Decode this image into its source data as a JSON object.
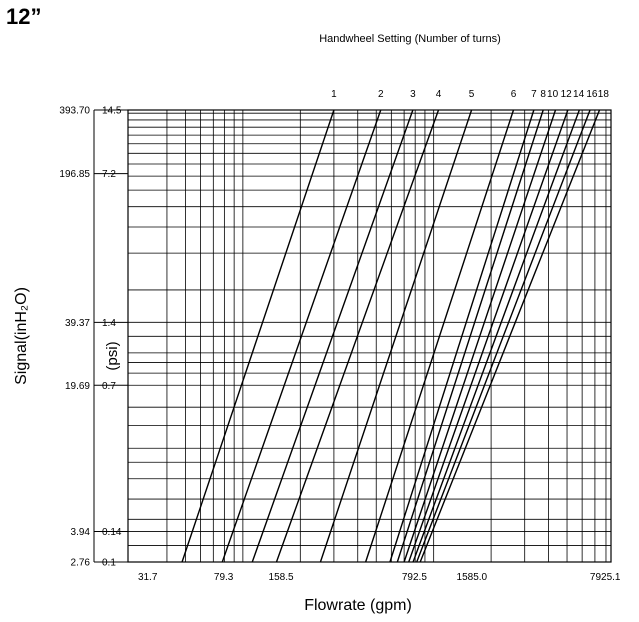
{
  "size_label": "12”",
  "chart_data": {
    "type": "line",
    "title": "Handwheel Setting (Number of turns)",
    "xlabel": "Flowrate (gpm)",
    "ylabel_outer": "Signal(inH₂O)",
    "ylabel_inner": "(psi)",
    "x_scale": "log",
    "y_scale": "log",
    "xlim": [
      25,
      8500
    ],
    "ylim": [
      0.1,
      14.5
    ],
    "grid": true,
    "x_ticks": [
      {
        "value": 31.7,
        "label": "31.7"
      },
      {
        "value": 79.3,
        "label": "79.3"
      },
      {
        "value": 158.5,
        "label": "158.5"
      },
      {
        "value": 792.5,
        "label": "792.5"
      },
      {
        "value": 1585.0,
        "label": "1585.0"
      },
      {
        "value": 7925.1,
        "label": "7925.1"
      }
    ],
    "y_ticks": [
      {
        "psi": 14.5,
        "psi_label": "14.5",
        "inh2o_label": "393.70"
      },
      {
        "psi": 7.2,
        "psi_label": "7.2",
        "inh2o_label": "196.85"
      },
      {
        "psi": 1.4,
        "psi_label": "1.4",
        "inh2o_label": "39.37"
      },
      {
        "psi": 0.7,
        "psi_label": "0.7",
        "inh2o_label": "19.69"
      },
      {
        "psi": 0.14,
        "psi_label": "0.14",
        "inh2o_label": "3.94"
      },
      {
        "psi": 0.1,
        "psi_label": "0.1",
        "inh2o_label": "2.76"
      }
    ],
    "x_grid": [
      40,
      50,
      60,
      70,
      80,
      90,
      100,
      200,
      300,
      400,
      500,
      600,
      700,
      800,
      900,
      1000,
      2000,
      3000,
      4000,
      5000,
      6000,
      7000,
      8000
    ],
    "y_grid": [
      0.12,
      0.14,
      0.16,
      0.2,
      0.25,
      0.3,
      0.35,
      0.45,
      0.55,
      0.7,
      0.8,
      0.9,
      1.0,
      1.2,
      1.4,
      2.0,
      3.0,
      4.0,
      5.0,
      6.0,
      7.0,
      8.0,
      9.0,
      10.0,
      11.0,
      12.0,
      13.0,
      14.0
    ],
    "series": [
      {
        "name": "1",
        "x_at_ymin": 48,
        "x_at_ymax": 300
      },
      {
        "name": "2",
        "x_at_ymin": 78,
        "x_at_ymax": 528
      },
      {
        "name": "3",
        "x_at_ymin": 112,
        "x_at_ymax": 778
      },
      {
        "name": "4",
        "x_at_ymin": 150,
        "x_at_ymax": 1060
      },
      {
        "name": "5",
        "x_at_ymin": 255,
        "x_at_ymax": 1580
      },
      {
        "name": "6",
        "x_at_ymin": 440,
        "x_at_ymax": 2620
      },
      {
        "name": "7",
        "x_at_ymin": 590,
        "x_at_ymax": 3350
      },
      {
        "name": "8",
        "x_at_ymin": 645,
        "x_at_ymax": 3750
      },
      {
        "name": "10",
        "x_at_ymin": 700,
        "x_at_ymax": 4350
      },
      {
        "name": "12",
        "x_at_ymin": 740,
        "x_at_ymax": 5050
      },
      {
        "name": "14",
        "x_at_ymin": 780,
        "x_at_ymax": 5800
      },
      {
        "name": "16",
        "x_at_ymin": 815,
        "x_at_ymax": 6600
      },
      {
        "name": "18",
        "x_at_ymin": 850,
        "x_at_ymax": 7400
      }
    ],
    "top_labels": [
      {
        "text": "1",
        "x": 300
      },
      {
        "text": "2",
        "x": 528
      },
      {
        "text": "3",
        "x": 778
      },
      {
        "text": "4",
        "x": 1060
      },
      {
        "text": "5",
        "x": 1580
      },
      {
        "text": "6",
        "x": 2620
      },
      {
        "text": "7",
        "x": 3350
      },
      {
        "text": "8",
        "x": 3750
      },
      {
        "text": "10",
        "x": 4200
      },
      {
        "text": "12",
        "x": 4950
      },
      {
        "text": "14",
        "x": 5750
      },
      {
        "text": "16",
        "x": 6750
      },
      {
        "text": "18",
        "x": 7750
      }
    ]
  }
}
